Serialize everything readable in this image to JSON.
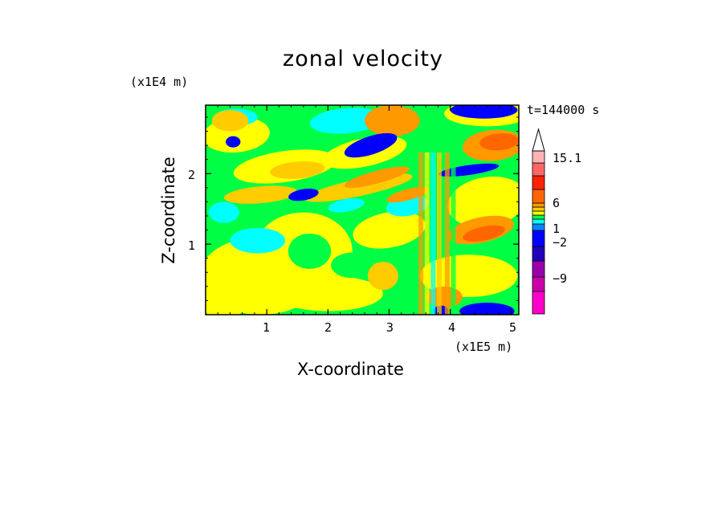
{
  "chart_data": {
    "type": "heatmap",
    "title": "zonal velocity",
    "xlabel": "X-coordinate",
    "ylabel": "Z-coordinate",
    "x_multiplier": "(x1E5 m)",
    "y_multiplier": "(x1E4 m)",
    "timestamp": "t=144000 s",
    "xlim": [
      0,
      5.12
    ],
    "ylim": [
      0,
      2.97
    ],
    "x_ticks": [
      "1",
      "2",
      "3",
      "4",
      "5"
    ],
    "y_ticks": [
      "1",
      "2"
    ],
    "colorbar": {
      "labels": [
        "15.1",
        "6",
        "1",
        "−2",
        "−9"
      ],
      "colors": [
        "#ff00cc",
        "#cc00aa",
        "#9900aa",
        "#2200bb",
        "#0000ff",
        "#0088ff",
        "#00ffff",
        "#00ff44",
        "#ffff00",
        "#ffcc00",
        "#ff9900",
        "#ff6600",
        "#ff2200",
        "#ff6666",
        "#ffb3b3"
      ]
    },
    "contour_colors": {
      "strong_negative": "#0000ff",
      "moderate_negative": "#00ffff",
      "weak_negative": "#00ff44",
      "near_zero": "#ffff00",
      "weak_positive": "#ffcc00",
      "moderate_positive": "#ff9900",
      "strong_positive": "#ff6600"
    },
    "grid": false,
    "legend": "right"
  }
}
